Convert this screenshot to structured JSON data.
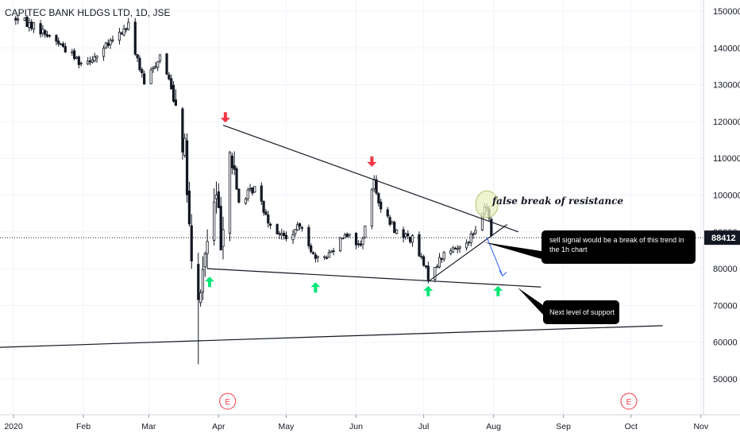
{
  "colors": {
    "background": "#ffffff",
    "grid": "#f0f3fa",
    "candle": "#131722",
    "trendline": "#131722",
    "up_arrow": "#00e676",
    "down_arrow": "#f23645",
    "callout_bg": "#000000",
    "projection": "#2962ff",
    "event_marker": "#f23645",
    "highlight_circle": "#e8efc0"
  },
  "chart_data": {
    "type": "candlestick",
    "title": "CAPITEC BANK HLDGS LTD, 1D, JSE",
    "xlabel": "",
    "ylabel": "",
    "x_ticks": [
      "2020",
      "Feb",
      "Mar",
      "Apr",
      "May",
      "Jun",
      "Jul",
      "Aug",
      "Sep",
      "Oct",
      "Nov"
    ],
    "y_ticks": [
      50000,
      60000,
      70000,
      80000,
      90000,
      100000,
      110000,
      120000,
      130000,
      140000,
      150000
    ],
    "ylim": [
      40000,
      152000
    ],
    "grid": true,
    "current_price": 88412,
    "current_price_label": "88412",
    "price_anchors": [
      [
        "2020-01-02",
        148000
      ],
      [
        "2020-01-10",
        146000
      ],
      [
        "2020-01-20",
        142000
      ],
      [
        "2020-01-31",
        136000
      ],
      [
        "2020-02-07",
        138000
      ],
      [
        "2020-02-14",
        142000
      ],
      [
        "2020-02-21",
        146000
      ],
      [
        "2020-02-28",
        130000
      ],
      [
        "2020-03-06",
        138000
      ],
      [
        "2020-03-12",
        128000
      ],
      [
        "2020-03-17",
        112000
      ],
      [
        "2020-03-20",
        80000
      ],
      [
        "2020-03-23",
        70000
      ],
      [
        "2020-03-26",
        84000
      ],
      [
        "2020-03-31",
        100000
      ],
      [
        "2020-04-02",
        88000
      ],
      [
        "2020-04-06",
        112000
      ],
      [
        "2020-04-10",
        98000
      ],
      [
        "2020-04-17",
        102000
      ],
      [
        "2020-04-24",
        92000
      ],
      [
        "2020-05-01",
        88000
      ],
      [
        "2020-05-08",
        92000
      ],
      [
        "2020-05-14",
        82000
      ],
      [
        "2020-05-20",
        84000
      ],
      [
        "2020-05-27",
        90000
      ],
      [
        "2020-06-03",
        86000
      ],
      [
        "2020-06-09",
        104000
      ],
      [
        "2020-06-12",
        96000
      ],
      [
        "2020-06-19",
        90000
      ],
      [
        "2020-06-26",
        88000
      ],
      [
        "2020-07-03",
        78000
      ],
      [
        "2020-07-10",
        84000
      ],
      [
        "2020-07-17",
        86000
      ],
      [
        "2020-07-24",
        90000
      ],
      [
        "2020-07-28",
        97000
      ],
      [
        "2020-07-30",
        94000
      ],
      [
        "2020-07-31",
        88412
      ]
    ],
    "trendlines": [
      {
        "name": "resistance",
        "from": [
          "2020-04-03",
          119000
        ],
        "to": [
          "2020-08-12",
          90000
        ]
      },
      {
        "name": "support",
        "from": [
          "2020-03-27",
          80000
        ],
        "to": [
          "2020-08-22",
          75000
        ]
      },
      {
        "name": "rising-support",
        "from": [
          "2020-07-03",
          76500
        ],
        "to": [
          "2020-08-07",
          92000
        ]
      },
      {
        "name": "long-term-support",
        "from": [
          "2019-12-20",
          58500
        ],
        "to": [
          "2020-10-15",
          64500
        ]
      }
    ],
    "markers": {
      "down": [
        [
          "2020-04-04",
          121000
        ],
        [
          "2020-06-08",
          109000
        ]
      ],
      "up": [
        [
          "2020-03-28",
          76500
        ],
        [
          "2020-05-14",
          75000
        ],
        [
          "2020-07-03",
          74000
        ],
        [
          "2020-08-03",
          74000
        ]
      ]
    },
    "projection": {
      "from": [
        "2020-07-29",
        88500
      ],
      "to": [
        "2020-08-05",
        78000
      ]
    },
    "highlight": {
      "center": [
        "2020-07-29",
        97500
      ]
    },
    "events": [
      {
        "date": "2020-04-05",
        "label": "E"
      },
      {
        "date": "2020-09-30",
        "label": "E"
      }
    ],
    "annotations": {
      "false_break": "false break of resistance",
      "sell_signal": "sell signal would be a break of this trend in the 1h chart",
      "next_support": "Next level of support"
    }
  }
}
